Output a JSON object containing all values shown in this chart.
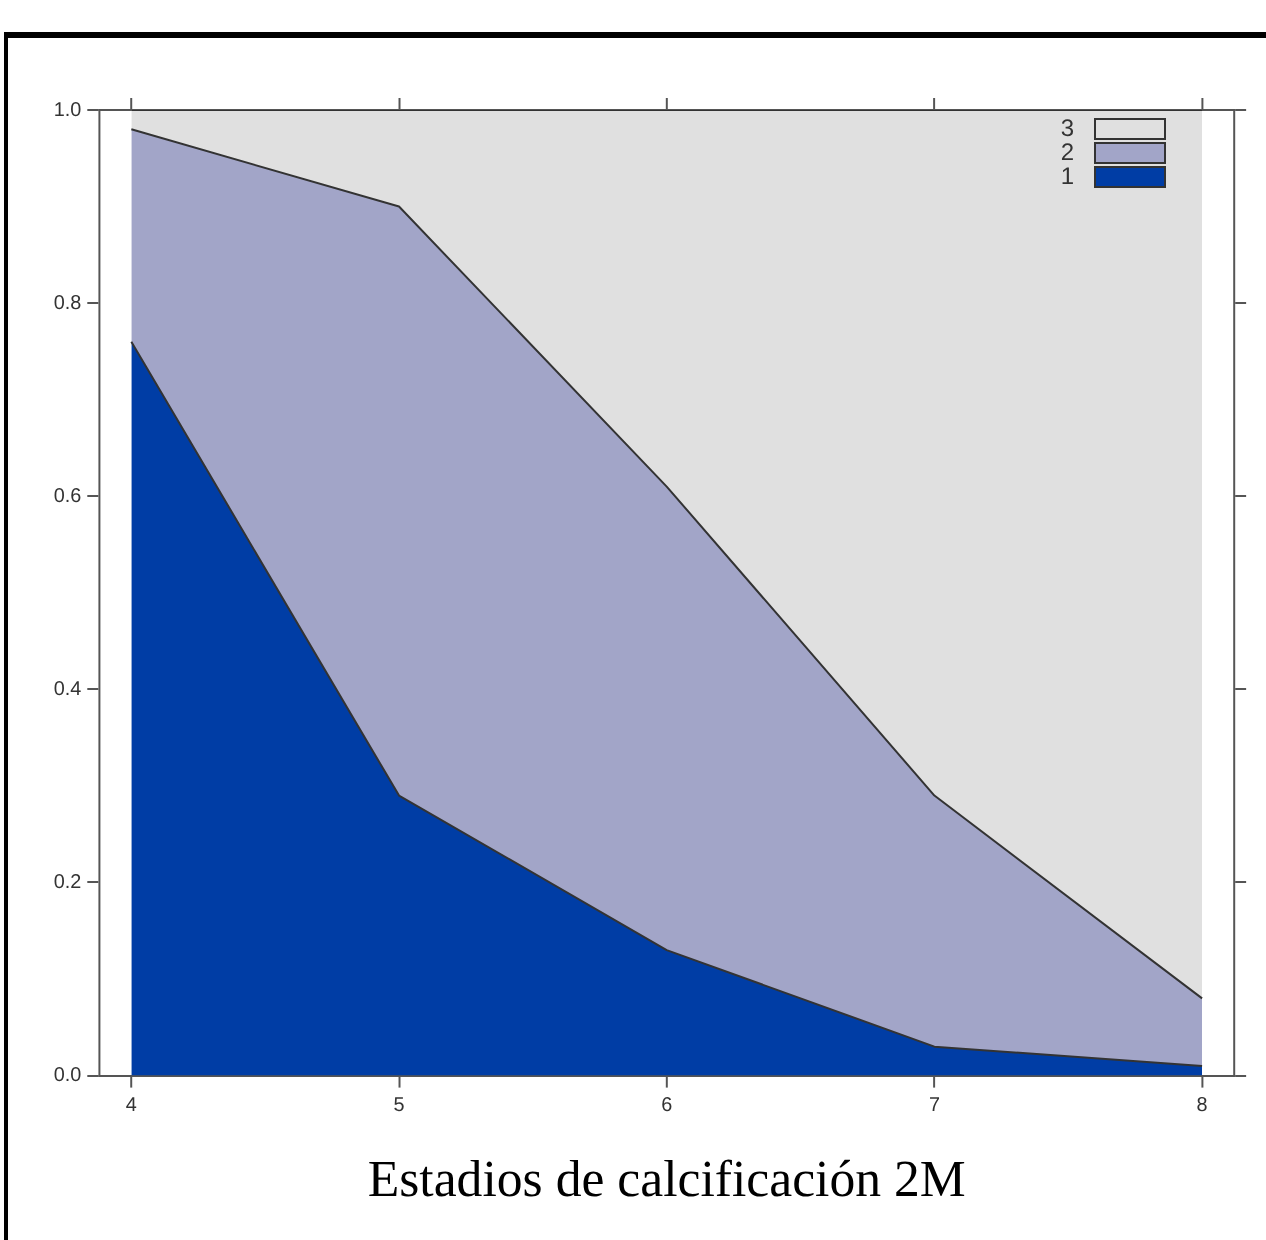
{
  "chart_data": {
    "type": "area",
    "xlabel": "Estadios de calcificación 2M",
    "x": [
      4,
      5,
      6,
      7,
      8
    ],
    "stacked": true,
    "series": [
      {
        "name": "1",
        "color": "#003da5",
        "values": [
          0.76,
          0.29,
          0.13,
          0.03,
          0.01
        ]
      },
      {
        "name": "2",
        "color": "#a2a5c8",
        "values": [
          0.22,
          0.61,
          0.48,
          0.26,
          0.07
        ]
      },
      {
        "name": "3",
        "color": "#e0e0e0",
        "values": [
          0.02,
          0.1,
          0.39,
          0.71,
          0.92
        ]
      }
    ],
    "xlim": [
      3.88,
      8.12
    ],
    "ylim": [
      0,
      1
    ],
    "xticks": [
      4,
      5,
      6,
      7,
      8
    ],
    "yticks": [
      {
        "value": 0,
        "label": "0.0"
      },
      {
        "value": 0.2,
        "label": "0.2"
      },
      {
        "value": 0.4,
        "label": "0.4"
      },
      {
        "value": 0.6,
        "label": "0.6"
      },
      {
        "value": 0.8,
        "label": "0.8"
      },
      {
        "value": 1,
        "label": "1.0"
      }
    ],
    "legend": "top right"
  }
}
